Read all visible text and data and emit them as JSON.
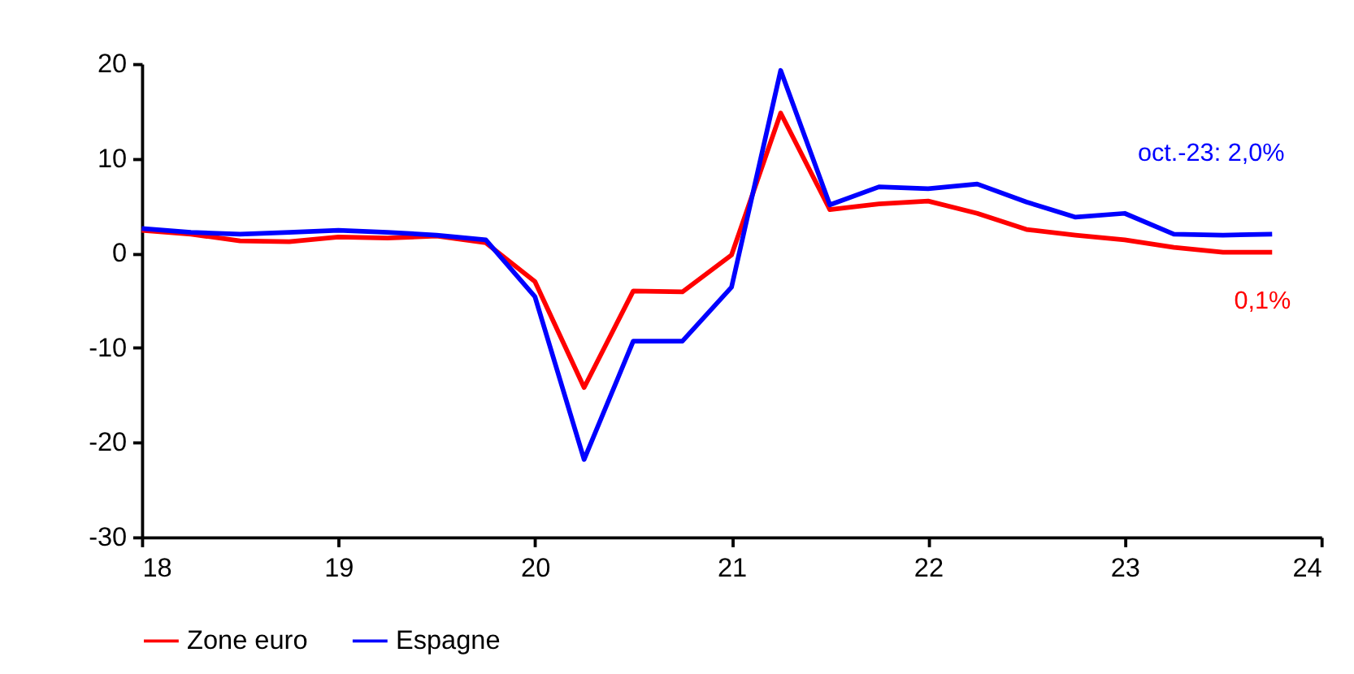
{
  "chart_data": {
    "type": "line",
    "x": [
      18,
      18.25,
      18.5,
      18.75,
      19,
      19.25,
      19.5,
      19.75,
      20,
      20.25,
      20.5,
      20.75,
      21,
      21.25,
      21.5,
      21.75,
      22,
      22.25,
      22.5,
      22.75,
      23,
      23.25,
      23.5,
      23.75
    ],
    "series": [
      {
        "name": "Zone euro",
        "color": "#ff0000",
        "values": [
          2.4,
          2.0,
          1.3,
          1.2,
          1.7,
          1.6,
          1.8,
          1.1,
          -3.0,
          -14.2,
          -4.0,
          -4.1,
          -0.2,
          14.8,
          4.6,
          5.2,
          5.5,
          4.2,
          2.5,
          1.9,
          1.4,
          0.6,
          0.1,
          0.1
        ]
      },
      {
        "name": "Espagne",
        "color": "#0000ff",
        "values": [
          2.6,
          2.2,
          2.0,
          2.2,
          2.4,
          2.2,
          1.9,
          1.4,
          -4.6,
          -21.8,
          -9.3,
          -9.3,
          -3.6,
          19.3,
          5.1,
          7.0,
          6.8,
          7.3,
          5.4,
          3.8,
          4.2,
          2.0,
          1.9,
          2.0
        ]
      }
    ],
    "xlim": [
      18,
      24
    ],
    "xticks": [
      18,
      19,
      20,
      21,
      22,
      23,
      24
    ],
    "ylim": [
      -30,
      20
    ],
    "yticks": [
      -30,
      -20,
      -10,
      0,
      10,
      20
    ],
    "annotations": [
      {
        "text": "oct.-23: 2,0%",
        "x": 23.75,
        "y": 2.0
      },
      {
        "text": "0,1%",
        "x": 23.75,
        "y": 0.1
      }
    ],
    "grid": false,
    "legend": "bottom left",
    "line_style": "solid",
    "marker": "none"
  }
}
